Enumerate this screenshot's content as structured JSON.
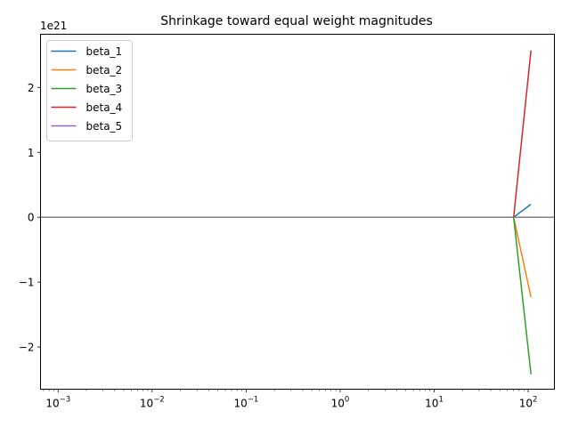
{
  "chart_data": {
    "type": "line",
    "title": "Shrinkage toward equal weight magnitudes",
    "xlabel": "",
    "ylabel": "",
    "xscale": "log",
    "xlim": [
      0.00065,
      190
    ],
    "ylim": [
      -2.65,
      2.82
    ],
    "y_offset_label": "1e21",
    "x_ticks": [
      {
        "value": 0.001,
        "base": "10",
        "exp": "−3"
      },
      {
        "value": 0.01,
        "base": "10",
        "exp": "−2"
      },
      {
        "value": 0.1,
        "base": "10",
        "exp": "−1"
      },
      {
        "value": 1,
        "base": "10",
        "exp": "0"
      },
      {
        "value": 10,
        "base": "10",
        "exp": "1"
      },
      {
        "value": 100,
        "base": "10",
        "exp": "2"
      }
    ],
    "y_ticks": [
      {
        "value": 2,
        "label": "2"
      },
      {
        "value": 1,
        "label": "1"
      },
      {
        "value": 0,
        "label": "0"
      },
      {
        "value": -1,
        "label": "−1"
      },
      {
        "value": -2,
        "label": "−2"
      }
    ],
    "x": [
      0.001,
      70,
      107
    ],
    "series": [
      {
        "name": "beta_1",
        "color": "#1f77b4",
        "values": [
          0,
          0,
          0.2
        ]
      },
      {
        "name": "beta_2",
        "color": "#ff7f0e",
        "values": [
          0,
          0,
          -1.23
        ]
      },
      {
        "name": "beta_3",
        "color": "#2ca02c",
        "values": [
          0,
          0,
          -2.42
        ]
      },
      {
        "name": "beta_4",
        "color": "#d62728",
        "values": [
          0,
          0,
          2.57
        ]
      },
      {
        "name": "beta_5",
        "color": "#9467bd",
        "values": [
          0,
          0,
          0
        ]
      }
    ],
    "reference_line": {
      "y": 0,
      "color": "#808080"
    },
    "grid": false,
    "legend_position": "upper-left"
  }
}
